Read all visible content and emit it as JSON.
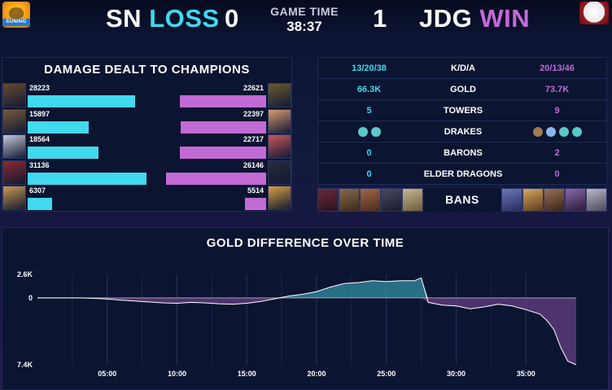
{
  "header": {
    "blue_team": "SN",
    "blue_result": "LOSS",
    "blue_score": "0",
    "red_team": "JDG",
    "red_result": "WIN",
    "red_score": "1",
    "game_time_label": "GAME TIME",
    "game_time": "38:37",
    "blue_logo_text": "SUNING"
  },
  "colors": {
    "blue": "#41d9ee",
    "red": "#c26ad6",
    "panel": "#0b1430"
  },
  "damage": {
    "title": "DAMAGE DEALT TO CHAMPIONS",
    "rows": [
      {
        "blue": "28223",
        "red": "22621"
      },
      {
        "blue": "15897",
        "red": "22397"
      },
      {
        "blue": "18564",
        "red": "22717"
      },
      {
        "blue": "31136",
        "red": "26146"
      },
      {
        "blue": "6307",
        "red": "5514"
      }
    ]
  },
  "stats": [
    {
      "label": "K/D/A",
      "blue": "13/20/38",
      "red": "20/13/46"
    },
    {
      "label": "GOLD",
      "blue": "66.3K",
      "red": "73.7K"
    },
    {
      "label": "TOWERS",
      "blue": "5",
      "red": "9"
    },
    {
      "label": "DRAKES",
      "blue": "",
      "red": "",
      "blue_icons": [
        "ocean-drake-icon",
        "ocean-drake-icon"
      ],
      "red_icons": [
        "mountain-drake-icon",
        "cloud-drake-icon",
        "ocean-drake-icon",
        "ocean-drake-icon"
      ]
    },
    {
      "label": "BARONS",
      "blue": "0",
      "red": "2"
    },
    {
      "label": "ELDER DRAGONS",
      "blue": "0",
      "red": "0"
    }
  ],
  "bans": {
    "label": "BANS"
  },
  "gold_chart": {
    "title": "GOLD DIFFERENCE OVER TIME",
    "y_top_label": "2.6K",
    "y_zero_label": "0",
    "y_bottom_label": "7.4K",
    "x_ticks": [
      "05:00",
      "10:00",
      "15:00",
      "20:00",
      "25:00",
      "30:00",
      "35:00"
    ]
  },
  "chart_data": {
    "type": "area",
    "title": "GOLD DIFFERENCE OVER TIME",
    "xlabel": "",
    "ylabel": "",
    "x_unit": "minutes",
    "ylim": [
      -7400,
      2600
    ],
    "x": [
      0,
      1,
      2,
      3,
      4,
      5,
      6,
      7,
      8,
      9,
      10,
      11,
      12,
      13,
      14,
      15,
      16,
      17,
      18,
      19,
      20,
      21,
      22,
      23,
      24,
      25,
      26,
      27,
      27.5,
      28,
      29,
      30,
      31,
      32,
      33,
      34,
      35,
      36,
      36.5,
      37,
      37.5,
      38,
      38.6
    ],
    "y": [
      0,
      0,
      0,
      0,
      -50,
      -120,
      -250,
      -350,
      -450,
      -550,
      -600,
      -500,
      -550,
      -650,
      -700,
      -600,
      -400,
      -100,
      200,
      400,
      700,
      1200,
      1600,
      1700,
      1900,
      1800,
      1900,
      1900,
      2200,
      -500,
      -800,
      -900,
      -1200,
      -1000,
      -700,
      -900,
      -1300,
      -1800,
      -2500,
      -3500,
      -5500,
      -7000,
      -7400
    ],
    "grid": true
  }
}
